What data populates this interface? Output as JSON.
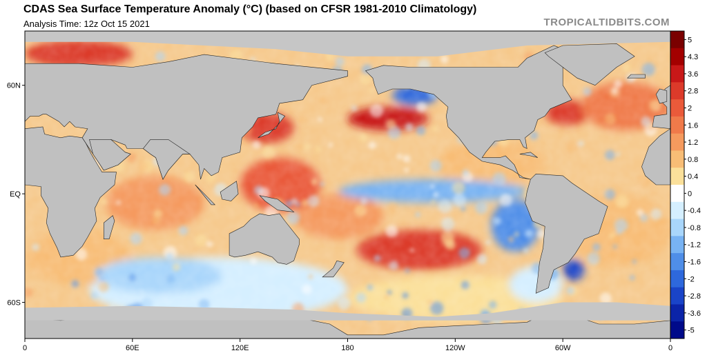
{
  "header": {
    "title": "CDAS Sea Surface Temperature Anomaly (°C) (based on CFSR 1981-2010 Climatology)",
    "subtitle": "Analysis Time: 12z Oct 15 2021",
    "brand": "TROPICALTIDBITS.COM"
  },
  "map": {
    "projection": "equirectangular",
    "lon_range": [
      0,
      360
    ],
    "lat_range": [
      -80,
      90
    ],
    "land_color": "#c0c0c0",
    "land_outline_color": "#222222",
    "x_ticks": [
      {
        "lon": 0,
        "label": "0"
      },
      {
        "lon": 60,
        "label": "60E"
      },
      {
        "lon": 120,
        "label": "120E"
      },
      {
        "lon": 180,
        "label": "180"
      },
      {
        "lon": 240,
        "label": "120W"
      },
      {
        "lon": 300,
        "label": "60W"
      },
      {
        "lon": 360,
        "label": "0"
      }
    ],
    "y_ticks": [
      {
        "lat": 60,
        "label": "60N"
      },
      {
        "lat": 0,
        "label": "EQ"
      },
      {
        "lat": -60,
        "label": "60S"
      }
    ]
  },
  "colorbar": {
    "labels": [
      "5",
      "4.3",
      "3.6",
      "2.8",
      "2",
      "1.6",
      "1.2",
      "0.8",
      "0.4",
      "0",
      "-0.4",
      "-0.8",
      "-1.2",
      "-1.6",
      "-2",
      "-2.8",
      "-3.6",
      "-5"
    ],
    "colors": [
      "#7a0000",
      "#a30000",
      "#c81818",
      "#dc3a2a",
      "#ea5a3a",
      "#f07a4a",
      "#f59a5e",
      "#f8bd76",
      "#fbe09a",
      "#ffffff",
      "#d5efff",
      "#a9d6fb",
      "#78b3f3",
      "#4f8ee8",
      "#2e68dc",
      "#1a44c8",
      "#0b24a8",
      "#000a8a"
    ]
  },
  "chart_data": {
    "type": "heatmap",
    "variable": "Sea Surface Temperature Anomaly",
    "units": "°C",
    "x": "longitude",
    "y": "latitude",
    "features": [
      {
        "name": "NE Pacific warm blob",
        "lon": [
          180,
          225
        ],
        "lat": [
          35,
          48
        ],
        "anomaly": 3.5
      },
      {
        "name": "Japan coastal warmth",
        "lon": [
          120,
          150
        ],
        "lat": [
          28,
          45
        ],
        "anomaly": 3.0
      },
      {
        "name": "Western Pacific warm pool",
        "lon": [
          120,
          165
        ],
        "lat": [
          -10,
          20
        ],
        "anomaly": 2.0
      },
      {
        "name": "South Pacific warm anomaly",
        "lon": [
          185,
          255
        ],
        "lat": [
          -42,
          -20
        ],
        "anomaly": 3.0
      },
      {
        "name": "Equatorial Pacific La Niña cold tongue",
        "lon": [
          175,
          280
        ],
        "lat": [
          -5,
          8
        ],
        "anomaly": -1.2
      },
      {
        "name": "Peru / Chile coastal cooling",
        "lon": [
          260,
          287
        ],
        "lat": [
          -32,
          -3
        ],
        "anomaly": -1.6
      },
      {
        "name": "Gulf of Alaska cold",
        "lon": [
          205,
          230
        ],
        "lat": [
          49,
          60
        ],
        "anomaly": -2.0
      },
      {
        "name": "Newfoundland / NW Atlantic warmth",
        "lon": [
          290,
          315
        ],
        "lat": [
          38,
          52
        ],
        "anomaly": 3.0
      },
      {
        "name": "North Atlantic warm",
        "lon": [
          310,
          360
        ],
        "lat": [
          35,
          62
        ],
        "anomaly": 1.6
      },
      {
        "name": "Argentine shelf cold",
        "lon": [
          300,
          312
        ],
        "lat": [
          -48,
          -36
        ],
        "anomaly": -2.8
      },
      {
        "name": "Southern Ocean cool patches",
        "lon": [
          40,
          110
        ],
        "lat": [
          -55,
          -35
        ],
        "anomaly": -1.0
      },
      {
        "name": "Indian Ocean warm",
        "lon": [
          45,
          100
        ],
        "lat": [
          -20,
          10
        ],
        "anomaly": 1.2
      },
      {
        "name": "Arctic Barents warmth",
        "lon": [
          0,
          60
        ],
        "lat": [
          70,
          85
        ],
        "anomaly": 3.0
      }
    ]
  }
}
